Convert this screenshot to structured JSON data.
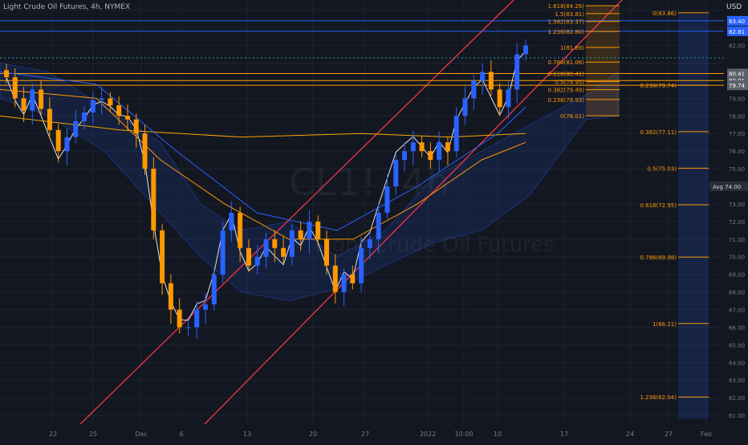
{
  "header": {
    "symbol_desc": "Light Crude Oil Futures, 4h, NYMEX"
  },
  "watermark": {
    "main": "CL1!, 4h",
    "sub": "Light Crude Oil Futures"
  },
  "price_axis": {
    "currency": "USD",
    "ticks": [
      "82.00",
      "79.00",
      "78.00",
      "77.00",
      "76.00",
      "75.00",
      "73.00",
      "72.00",
      "71.00",
      "70.00",
      "69.00",
      "68.00",
      "67.00",
      "66.00",
      "65.00",
      "64.00",
      "63.00",
      "62.00",
      "61.00"
    ],
    "badges": [
      {
        "text": "83.40",
        "price": 83.4,
        "color": "#2962ff"
      },
      {
        "text": "82.81",
        "price": 82.81,
        "color": "#2962ff"
      },
      {
        "text": "80.41",
        "price": 80.41,
        "color": "#5d606b"
      },
      {
        "text": "80.01",
        "price": 80.01,
        "color": "#5d606b"
      },
      {
        "text": "79.74",
        "price": 79.74,
        "color": "#5d606b"
      }
    ],
    "avg": {
      "label": "Avg",
      "value": "74.00",
      "price": 74.0
    }
  },
  "time_axis": {
    "labels": [
      "22",
      "25",
      "Dec",
      "6",
      "13",
      "20",
      "27",
      "2022",
      "10:00",
      "10",
      "17",
      "24",
      "27",
      "Feb"
    ]
  },
  "fib_upper": {
    "levels": [
      {
        "label": "1.618(84.26)",
        "price": 84.26
      },
      {
        "label": "1.5(83.81)",
        "price": 83.81
      },
      {
        "label": "1.382(83.37)",
        "price": 83.37
      },
      {
        "label": "1.236(82.80)",
        "price": 82.8
      },
      {
        "label": "1(81.89)",
        "price": 81.89
      },
      {
        "label": "0.786(81.06)",
        "price": 81.06
      },
      {
        "label": "0.618(80.41)",
        "price": 80.41
      },
      {
        "label": "0.5(79.95)",
        "price": 79.95
      },
      {
        "label": "0.382(79.49)",
        "price": 79.49
      },
      {
        "label": "0.236(78.93)",
        "price": 78.93
      },
      {
        "label": "0(78.01)",
        "price": 78.01
      }
    ]
  },
  "fib_lower": {
    "levels": [
      {
        "label": "0(83.86)",
        "price": 83.86
      },
      {
        "label": "0.236(79.74)",
        "price": 79.74
      },
      {
        "label": "0.382(77.11)",
        "price": 77.11
      },
      {
        "label": "0.5(75.03)",
        "price": 75.03
      },
      {
        "label": "0.618(72.95)",
        "price": 72.95
      },
      {
        "label": "0.786(69.98)",
        "price": 69.98
      },
      {
        "label": "1(66.21)",
        "price": 66.21
      },
      {
        "label": "1.236(62.04)",
        "price": 62.04
      }
    ]
  },
  "colors": {
    "up": "#2962ff",
    "down": "#ff9800",
    "channel": "#f23645",
    "fib_orange": "#ff9800",
    "fib_blue": "#2962ff",
    "grid": "#1e222d",
    "axis_text": "#787b86"
  },
  "chart_data": {
    "type": "candlestick",
    "title": "Light Crude Oil Futures, 4h, NYMEX",
    "ylim": [
      60.5,
      84.4
    ],
    "y_axis_side": "right",
    "grid": true,
    "series": [
      {
        "name": "close",
        "values": [
          80.2,
          79.0,
          78.3,
          79.5,
          78.4,
          77.2,
          76.0,
          76.8,
          77.7,
          78.2,
          78.9,
          79.0,
          78.6,
          78.0,
          77.8,
          77.0,
          75.0,
          71.5,
          68.5,
          67.0,
          66.0,
          66.0,
          67.0,
          67.3,
          69.0,
          71.5,
          72.5,
          70.5,
          69.5,
          70.0,
          71.0,
          70.5,
          70.0,
          71.5,
          71.0,
          72.0,
          71.0,
          69.5,
          68.0,
          69.0,
          68.5,
          70.5,
          71.0,
          72.5,
          74.0,
          75.5,
          76.0,
          76.5,
          76.0,
          75.5,
          76.5,
          76.0,
          78.0,
          79.0,
          80.0,
          80.5,
          79.5,
          78.5,
          79.5,
          81.5,
          82.0
        ]
      }
    ]
  }
}
